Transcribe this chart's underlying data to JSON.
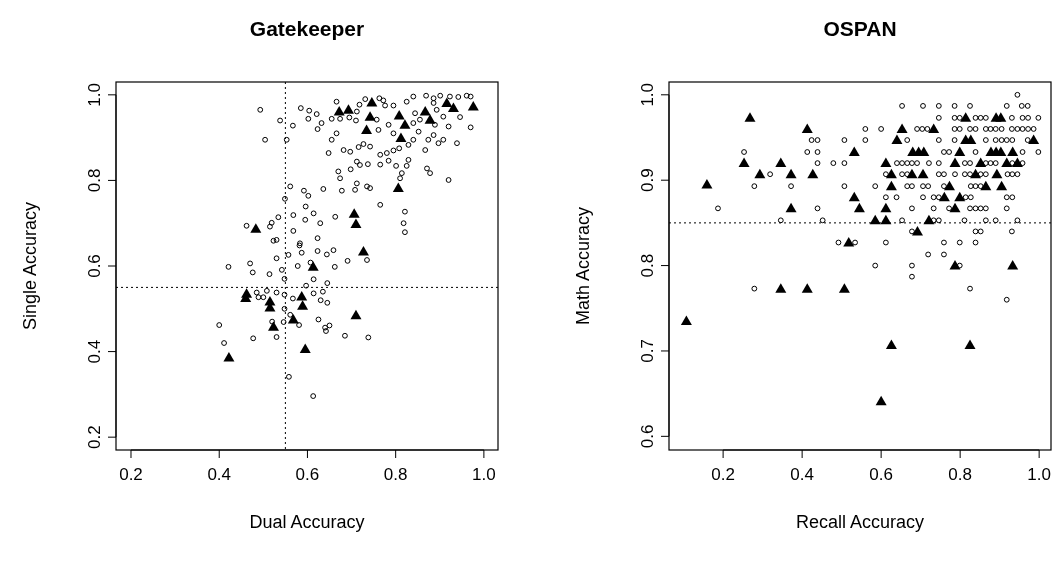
{
  "chart_data": [
    {
      "type": "scatter",
      "title": "Gatekeeper",
      "xlabel": "Dual Accuracy",
      "ylabel": "Single Accuracy",
      "xlim": [
        0.166,
        1.032
      ],
      "ylim": [
        0.17,
        1.03
      ],
      "xticks": [
        0.2,
        0.4,
        0.6,
        0.8,
        {
          "value": 1,
          "label": "1.0"
        }
      ],
      "yticks": [
        0.2,
        0.4,
        0.6,
        0.8,
        {
          "value": 1,
          "label": "1.0"
        }
      ],
      "ref_lines": [
        {
          "axis": "x",
          "value": 0.55,
          "line_style": "dotted"
        },
        {
          "axis": "y",
          "value": 0.55,
          "line_style": "dotted"
        }
      ],
      "series": [
        {
          "color": "#000000",
          "marker": "circle",
          "x": [
            0.493,
            0.585,
            0.604,
            0.621,
            0.602,
            0.538,
            0.567,
            0.504,
            0.553,
            0.632,
            0.623,
            0.655,
            0.674,
            0.666,
            0.695,
            0.71,
            0.712,
            0.731,
            0.718,
            0.763,
            0.772,
            0.776,
            0.795,
            0.825,
            0.84,
            0.869,
            0.886,
            0.901,
            0.923,
            0.942,
            0.961,
            0.97,
            0.886,
            0.893,
            0.844,
            0.855,
            0.889,
            0.908,
            0.946,
            0.92,
            0.97,
            0.761,
            0.757,
            0.784,
            0.795,
            0.84,
            0.852,
            0.886,
            0.908,
            0.939,
            0.874,
            0.867,
            0.897,
            0.84,
            0.829,
            0.808,
            0.795,
            0.78,
            0.765,
            0.742,
            0.727,
            0.716,
            0.697,
            0.682,
            0.648,
            0.655,
            0.666,
            0.712,
            0.719,
            0.737,
            0.698,
            0.67,
            0.674,
            0.765,
            0.784,
            0.801,
            0.825,
            0.829,
            0.871,
            0.878,
            0.92,
            0.814,
            0.81,
            0.712,
            0.708,
            0.735,
            0.742,
            0.678,
            0.636,
            0.592,
            0.602,
            0.561,
            0.549,
            0.765,
            0.821,
            0.818,
            0.821,
            0.596,
            0.614,
            0.595,
            0.568,
            0.534,
            0.519,
            0.515,
            0.462,
            0.568,
            0.629,
            0.663,
            0.623,
            0.583,
            0.582,
            0.53,
            0.523,
            0.53,
            0.557,
            0.587,
            0.623,
            0.644,
            0.659,
            0.691,
            0.735,
            0.421,
            0.47,
            0.578,
            0.607,
            0.662,
            0.476,
            0.514,
            0.542,
            0.548,
            0.614,
            0.597,
            0.645,
            0.635,
            0.614,
            0.63,
            0.645,
            0.485,
            0.508,
            0.53,
            0.548,
            0.567,
            0.548,
            0.5,
            0.489,
            0.561,
            0.546,
            0.52,
            0.581,
            0.625,
            0.64,
            0.65,
            0.642,
            0.685,
            0.738,
            0.53,
            0.477,
            0.4,
            0.411,
            0.558,
            0.613
          ],
          "values": [
            0.965,
            0.969,
            0.963,
            0.955,
            0.944,
            0.94,
            0.928,
            0.895,
            0.895,
            0.934,
            0.92,
            0.944,
            0.944,
            0.984,
            0.947,
            0.94,
            0.961,
            0.99,
            0.977,
            0.992,
            0.987,
            0.975,
            0.975,
            0.984,
            0.996,
            0.998,
            0.992,
            0.998,
            0.996,
            0.995,
            0.998,
            0.996,
            0.981,
            0.965,
            0.957,
            0.942,
            0.93,
            0.949,
            0.948,
            0.926,
            0.924,
            0.918,
            0.942,
            0.93,
            0.91,
            0.934,
            0.914,
            0.906,
            0.895,
            0.887,
            0.895,
            0.871,
            0.887,
            0.895,
            0.883,
            0.875,
            0.87,
            0.864,
            0.86,
            0.879,
            0.885,
            0.878,
            0.867,
            0.871,
            0.864,
            0.895,
            0.91,
            0.844,
            0.836,
            0.838,
            0.826,
            0.821,
            0.805,
            0.837,
            0.846,
            0.834,
            0.834,
            0.848,
            0.828,
            0.817,
            0.801,
            0.817,
            0.805,
            0.793,
            0.778,
            0.786,
            0.782,
            0.776,
            0.78,
            0.776,
            0.764,
            0.786,
            0.757,
            0.743,
            0.727,
            0.7,
            0.679,
            0.739,
            0.723,
            0.708,
            0.719,
            0.714,
            0.701,
            0.692,
            0.694,
            0.682,
            0.7,
            0.715,
            0.665,
            0.653,
            0.648,
            0.661,
            0.659,
            0.618,
            0.626,
            0.631,
            0.635,
            0.627,
            0.637,
            0.612,
            0.614,
            0.598,
            0.606,
            0.6,
            0.608,
            0.598,
            0.585,
            0.581,
            0.591,
            0.57,
            0.569,
            0.554,
            0.56,
            0.54,
            0.536,
            0.52,
            0.514,
            0.538,
            0.542,
            0.538,
            0.533,
            0.524,
            0.5,
            0.527,
            0.527,
            0.486,
            0.469,
            0.47,
            0.462,
            0.475,
            0.456,
            0.461,
            0.448,
            0.437,
            0.433,
            0.434,
            0.431,
            0.462,
            0.42,
            0.341,
            0.296
          ]
        },
        {
          "color": "#000000",
          "marker": "triangle",
          "x": [
            0.672,
            0.693,
            0.746,
            0.742,
            0.808,
            0.821,
            0.867,
            0.878,
            0.916,
            0.931,
            0.976,
            0.734,
            0.812,
            0.806,
            0.706,
            0.71,
            0.483,
            0.727,
            0.613,
            0.462,
            0.46,
            0.515,
            0.515,
            0.587,
            0.589,
            0.568,
            0.523,
            0.71,
            0.422,
            0.595
          ],
          "values": [
            0.961,
            0.965,
            0.982,
            0.949,
            0.952,
            0.93,
            0.961,
            0.942,
            0.981,
            0.969,
            0.973,
            0.918,
            0.899,
            0.782,
            0.722,
            0.698,
            0.687,
            0.634,
            0.598,
            0.535,
            0.525,
            0.517,
            0.503,
            0.529,
            0.507,
            0.475,
            0.458,
            0.485,
            0.386,
            0.406
          ]
        }
      ]
    },
    {
      "type": "scatter",
      "title": "OSPAN",
      "xlabel": "Recall Accuracy",
      "ylabel": "Math Accuracy",
      "xlim": [
        0.063,
        1.03
      ],
      "ylim": [
        0.584,
        1.015
      ],
      "xticks": [
        0.2,
        0.4,
        0.6,
        0.8,
        {
          "value": 1,
          "label": "1.0"
        }
      ],
      "yticks": [
        0.6,
        0.7,
        0.8,
        0.9,
        {
          "value": 1,
          "label": "1.0"
        }
      ],
      "ref_lines": [
        {
          "axis": "y",
          "value": 0.85,
          "line_style": "dotted"
        }
      ],
      "series": [
        {
          "color": "#000000",
          "marker": "circle",
          "x": [
            0.945,
            0.653,
            0.706,
            0.746,
            0.786,
            0.825,
            0.918,
            0.956,
            0.971,
            0.746,
            0.786,
            0.799,
            0.839,
            0.852,
            0.865,
            0.931,
            0.958,
            0.972,
            0.998,
            0.56,
            0.6,
            0.691,
            0.704,
            0.717,
            0.786,
            0.799,
            0.825,
            0.839,
            0.865,
            0.877,
            0.89,
            0.905,
            0.931,
            0.945,
            0.958,
            0.972,
            0.986,
            0.424,
            0.439,
            0.507,
            0.56,
            0.666,
            0.746,
            0.786,
            0.865,
            0.89,
            0.905,
            0.918,
            0.932,
            0.971,
            0.253,
            0.413,
            0.439,
            0.759,
            0.772,
            0.839,
            0.958,
            0.998,
            0.439,
            0.479,
            0.507,
            0.64,
            0.653,
            0.666,
            0.678,
            0.691,
            0.721,
            0.746,
            0.812,
            0.825,
            0.865,
            0.877,
            0.89,
            0.932,
            0.958,
            0.319,
            0.612,
            0.653,
            0.666,
            0.746,
            0.759,
            0.787,
            0.812,
            0.825,
            0.852,
            0.865,
            0.92,
            0.932,
            0.945,
            0.279,
            0.372,
            0.507,
            0.585,
            0.666,
            0.678,
            0.706,
            0.719,
            0.759,
            0.827,
            0.839,
            0.852,
            0.612,
            0.639,
            0.706,
            0.733,
            0.746,
            0.814,
            0.827,
            0.918,
            0.932,
            0.187,
            0.439,
            0.678,
            0.733,
            0.772,
            0.825,
            0.839,
            0.852,
            0.865,
            0.918,
            0.346,
            0.452,
            0.653,
            0.733,
            0.746,
            0.811,
            0.865,
            0.89,
            0.945,
            0.678,
            0.839,
            0.852,
            0.931,
            0.492,
            0.534,
            0.612,
            0.759,
            0.799,
            0.839,
            0.719,
            0.759,
            0.585,
            0.678,
            0.799,
            0.678,
            0.279,
            0.825,
            0.918
          ],
          "values": [
            1,
            0.987,
            0.987,
            0.987,
            0.987,
            0.987,
            0.987,
            0.987,
            0.987,
            0.973,
            0.973,
            0.973,
            0.973,
            0.973,
            0.973,
            0.973,
            0.973,
            0.973,
            0.973,
            0.96,
            0.96,
            0.96,
            0.96,
            0.96,
            0.96,
            0.96,
            0.96,
            0.96,
            0.96,
            0.96,
            0.96,
            0.96,
            0.96,
            0.96,
            0.96,
            0.96,
            0.96,
            0.947,
            0.947,
            0.947,
            0.947,
            0.947,
            0.947,
            0.947,
            0.947,
            0.947,
            0.947,
            0.947,
            0.947,
            0.947,
            0.933,
            0.933,
            0.933,
            0.933,
            0.933,
            0.933,
            0.933,
            0.933,
            0.92,
            0.92,
            0.92,
            0.92,
            0.92,
            0.92,
            0.92,
            0.92,
            0.92,
            0.92,
            0.92,
            0.92,
            0.92,
            0.92,
            0.92,
            0.92,
            0.92,
            0.907,
            0.907,
            0.907,
            0.907,
            0.907,
            0.907,
            0.907,
            0.907,
            0.907,
            0.907,
            0.907,
            0.907,
            0.907,
            0.907,
            0.893,
            0.893,
            0.893,
            0.893,
            0.893,
            0.893,
            0.893,
            0.893,
            0.893,
            0.893,
            0.893,
            0.893,
            0.88,
            0.88,
            0.88,
            0.88,
            0.88,
            0.88,
            0.88,
            0.88,
            0.88,
            0.867,
            0.867,
            0.867,
            0.867,
            0.867,
            0.867,
            0.867,
            0.867,
            0.867,
            0.867,
            0.853,
            0.853,
            0.853,
            0.853,
            0.853,
            0.853,
            0.853,
            0.853,
            0.853,
            0.84,
            0.84,
            0.84,
            0.84,
            0.827,
            0.827,
            0.827,
            0.827,
            0.827,
            0.827,
            0.813,
            0.813,
            0.8,
            0.8,
            0.8,
            0.787,
            0.773,
            0.773,
            0.76
          ]
        },
        {
          "color": "#000000",
          "marker": "triangle",
          "x": [
            0.159,
            0.268,
            0.253,
            0.293,
            0.346,
            0.372,
            0.372,
            0.413,
            0.427,
            0.532,
            0.532,
            0.545,
            0.518,
            0.585,
            0.612,
            0.612,
            0.626,
            0.626,
            0.612,
            0.653,
            0.64,
            0.68,
            0.695,
            0.708,
            0.678,
            0.706,
            0.692,
            0.733,
            0.721,
            0.76,
            0.773,
            0.787,
            0.799,
            0.787,
            0.799,
            0.814,
            0.814,
            0.827,
            0.839,
            0.852,
            0.865,
            0.878,
            0.891,
            0.903,
            0.891,
            0.903,
            0.893,
            0.905,
            0.918,
            0.933,
            0.945,
            0.986,
            0.787,
            0.933,
            0.107,
            0.346,
            0.413,
            0.507,
            0.626,
            0.6,
            0.825
          ],
          "values": [
            0.895,
            0.973,
            0.92,
            0.907,
            0.92,
            0.907,
            0.867,
            0.96,
            0.907,
            0.933,
            0.88,
            0.867,
            0.827,
            0.853,
            0.853,
            0.867,
            0.893,
            0.907,
            0.92,
            0.96,
            0.947,
            0.933,
            0.933,
            0.933,
            0.907,
            0.907,
            0.84,
            0.96,
            0.853,
            0.88,
            0.893,
            0.867,
            0.88,
            0.92,
            0.933,
            0.973,
            0.947,
            0.947,
            0.907,
            0.92,
            0.893,
            0.933,
            0.973,
            0.973,
            0.933,
            0.933,
            0.907,
            0.893,
            0.92,
            0.933,
            0.92,
            0.947,
            0.8,
            0.8,
            0.735,
            0.773,
            0.773,
            0.773,
            0.707,
            0.641,
            0.707
          ]
        }
      ]
    }
  ]
}
